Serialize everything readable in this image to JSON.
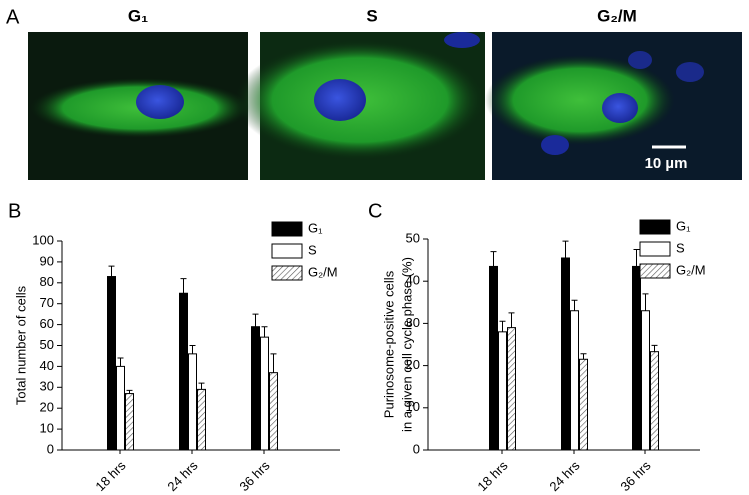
{
  "figure": {
    "panel_label": "A",
    "images": [
      {
        "title": "G₁"
      },
      {
        "title": "S"
      },
      {
        "title": "G₂/M"
      }
    ],
    "scale_bar": "10 µm"
  },
  "chart_data": [
    {
      "type": "bar",
      "panel_label": "B",
      "ylabel": [
        "Total number of cells"
      ],
      "categories": [
        "18 hrs",
        "24 hrs",
        "36 hrs"
      ],
      "series": [
        {
          "name": "G₁",
          "color": "#000000",
          "values": [
            83,
            75,
            59
          ],
          "errors": [
            5,
            7,
            6
          ]
        },
        {
          "name": "S",
          "color": "#ffffff",
          "values": [
            40,
            46,
            54
          ],
          "errors": [
            4,
            4,
            5
          ]
        },
        {
          "name": "G₂/M",
          "color": "#ffffff",
          "hatch": true,
          "values": [
            27,
            29,
            37
          ],
          "errors": [
            1.5,
            3,
            9
          ]
        }
      ],
      "ylim": [
        0,
        100
      ],
      "yticks": [
        0,
        10,
        20,
        30,
        40,
        50,
        60,
        70,
        80,
        90,
        100
      ],
      "grid": false
    },
    {
      "type": "bar",
      "panel_label": "C",
      "ylabel": [
        "Purinosome-positive cells",
        "in a given cell cycle phase (%)"
      ],
      "categories": [
        "18 hrs",
        "24 hrs",
        "36 hrs"
      ],
      "series": [
        {
          "name": "G₁",
          "color": "#000000",
          "values": [
            43.5,
            45.5,
            43.5
          ],
          "errors": [
            3.5,
            4,
            4
          ]
        },
        {
          "name": "S",
          "color": "#ffffff",
          "values": [
            28,
            33,
            33
          ],
          "errors": [
            2.5,
            2.5,
            4
          ]
        },
        {
          "name": "G₂/M",
          "color": "#ffffff",
          "hatch": true,
          "values": [
            29,
            21.5,
            23.3
          ],
          "errors": [
            3.5,
            1.3,
            1.5
          ]
        }
      ],
      "ylim": [
        0,
        50
      ],
      "yticks": [
        0,
        10,
        20,
        30,
        40,
        50
      ],
      "grid": false
    }
  ]
}
